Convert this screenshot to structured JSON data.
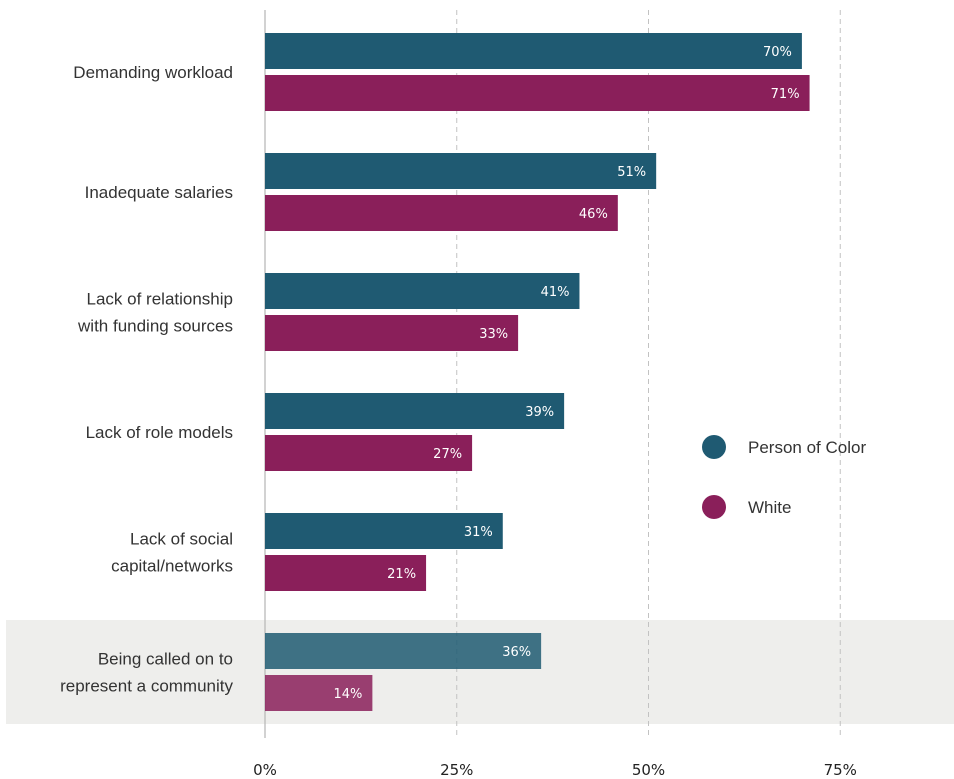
{
  "chart_data": {
    "type": "bar",
    "orientation": "horizontal",
    "categories": [
      "Demanding workload",
      "Inadequate salaries",
      "Lack of relationship\nwith funding sources",
      "Lack of role models",
      "Lack of social\ncapital/networks",
      "Being called on to\nrepresent a community"
    ],
    "series": [
      {
        "name": "Person of Color",
        "color": "#1f5a72",
        "values": [
          70,
          51,
          41,
          39,
          31,
          36
        ]
      },
      {
        "name": "White",
        "color": "#8a1f5a",
        "values": [
          71,
          46,
          33,
          27,
          21,
          14
        ]
      }
    ],
    "highlighted_category": "Being called on to\nrepresent a community",
    "highlight_color": "#eeeeec",
    "x_ticks": [
      0,
      25,
      50,
      75
    ],
    "x_tick_labels": [
      "0%",
      "25%",
      "50%",
      "75%"
    ],
    "xlim": [
      0,
      90
    ],
    "value_suffix": "%",
    "grid": "vertical dashed",
    "legend_position": "right"
  }
}
